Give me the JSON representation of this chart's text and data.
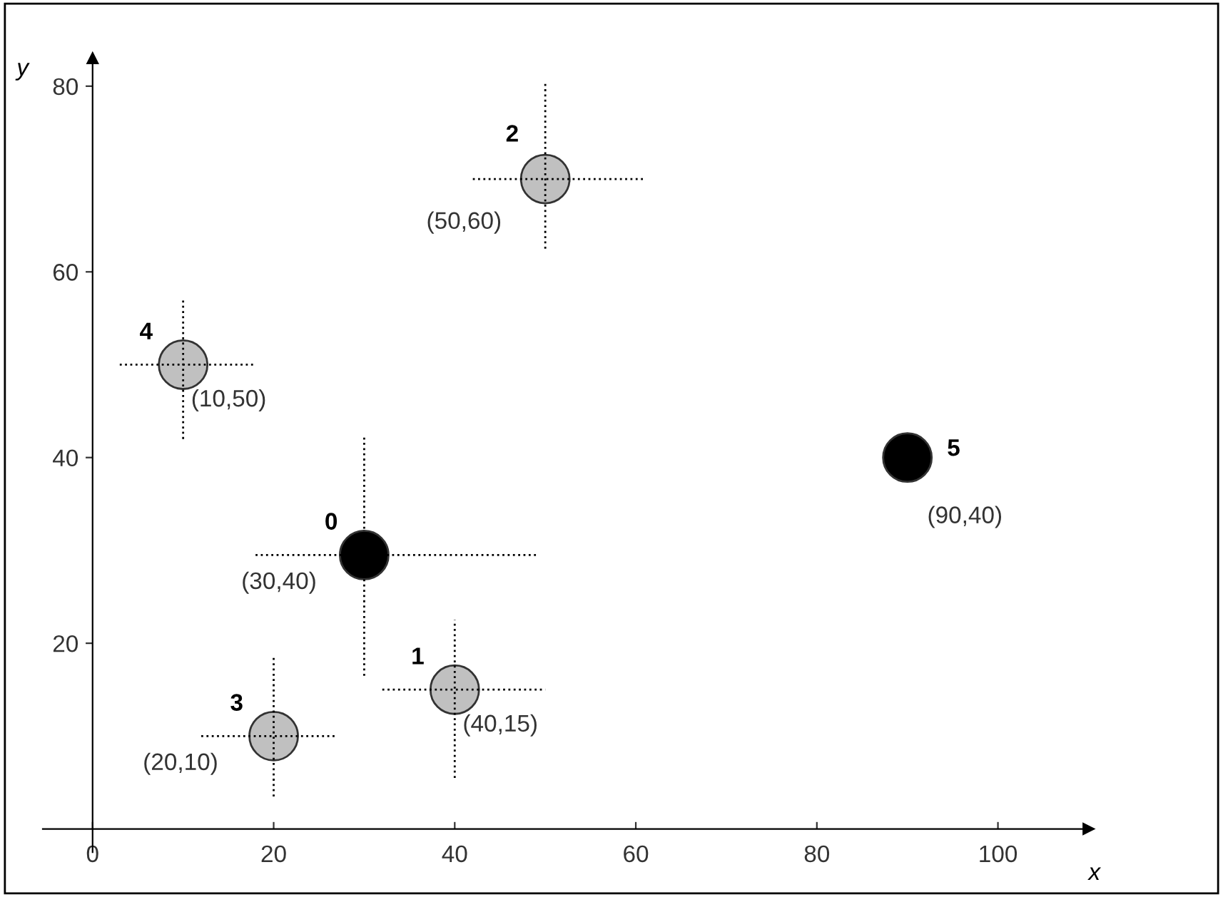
{
  "chart_data": {
    "type": "scatter",
    "xlabel": "x",
    "ylabel": "y",
    "x": [
      30,
      40,
      50,
      20,
      10,
      90
    ],
    "values": [
      29.5,
      15,
      70,
      10,
      50,
      40
    ],
    "colors": [
      "#000000",
      "#c0c0c0",
      "#c0c0c0",
      "#c0c0c0",
      "#c0c0c0",
      "#000000"
    ],
    "errors": [
      [
        16.5,
        42.5
      ],
      [
        5.5,
        22.5
      ],
      [
        62.5,
        80.5
      ],
      [
        3.5,
        18.5
      ],
      [
        42,
        57
      ],
      null
    ],
    "xerrors": [
      [
        18,
        49
      ],
      [
        32,
        50
      ],
      [
        42,
        61
      ],
      [
        12,
        27
      ],
      [
        3,
        18
      ],
      null
    ],
    "xlim": [
      -5.5,
      110
    ],
    "ylim": [
      -2.5,
      83
    ],
    "xticks": [
      0,
      20,
      40,
      60,
      80,
      100
    ],
    "yticks": [
      20,
      40,
      60,
      80
    ],
    "marker": "circle",
    "line_style": "dotted",
    "grid": false,
    "legend": false,
    "annotations": [
      {
        "text": "0",
        "x": 30,
        "y": 29.5
      },
      {
        "text": "(30,40)",
        "x": 30,
        "y": 29.5
      },
      {
        "text": "1",
        "x": 40,
        "y": 15
      },
      {
        "text": "(40,15)",
        "x": 40,
        "y": 15
      },
      {
        "text": "2",
        "x": 50,
        "y": 70
      },
      {
        "text": "(50,60)",
        "x": 50,
        "y": 70
      },
      {
        "text": "3",
        "x": 20,
        "y": 10
      },
      {
        "text": "(20,10)",
        "x": 20,
        "y": 10
      },
      {
        "text": "4",
        "x": 10,
        "y": 50
      },
      {
        "text": "(10,50)",
        "x": 10,
        "y": 50
      },
      {
        "text": "5",
        "x": 90,
        "y": 40
      },
      {
        "text": "(90,40)",
        "x": 90,
        "y": 40
      }
    ]
  }
}
